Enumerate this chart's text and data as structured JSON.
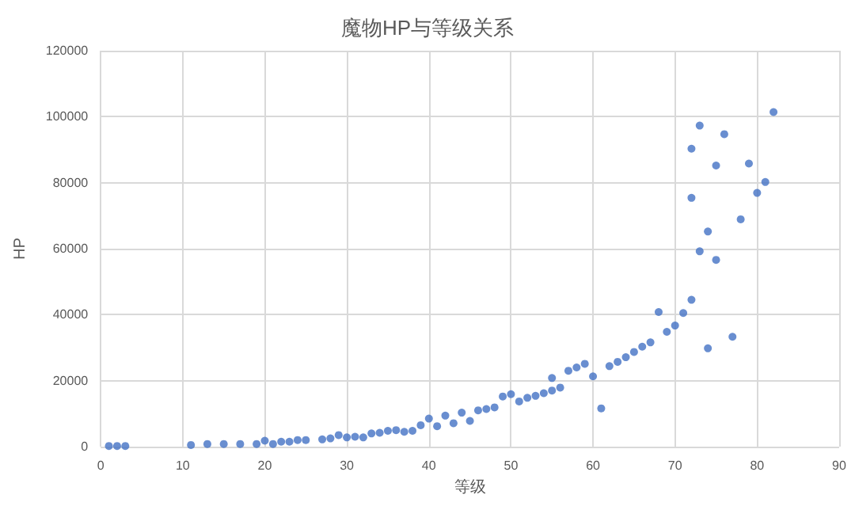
{
  "chart_data": {
    "type": "scatter",
    "title": "魔物HP与等级关系",
    "xlabel": "等级",
    "ylabel": "HP",
    "x": [
      1,
      2,
      3,
      11,
      13,
      15,
      17,
      19,
      20,
      21,
      22,
      23,
      24,
      25,
      27,
      28,
      29,
      30,
      31,
      32,
      33,
      34,
      35,
      36,
      37,
      38,
      39,
      40,
      41,
      42,
      43,
      44,
      45,
      46,
      47,
      48,
      49,
      50,
      51,
      52,
      53,
      54,
      55,
      55,
      56,
      57,
      58,
      59,
      60,
      61,
      62,
      63,
      64,
      65,
      66,
      67,
      68,
      69,
      70,
      71,
      72,
      72,
      72,
      73,
      73,
      74,
      74,
      75,
      75,
      76,
      77,
      78,
      79,
      80,
      81,
      82
    ],
    "values": [
      200,
      200,
      200,
      500,
      800,
      800,
      800,
      800,
      1800,
      800,
      1500,
      1500,
      2000,
      2000,
      2200,
      2500,
      3500,
      2800,
      3000,
      2800,
      4000,
      4200,
      4800,
      5000,
      4500,
      4800,
      6500,
      8500,
      6200,
      9400,
      7100,
      10300,
      7800,
      11000,
      11400,
      11900,
      15200,
      15900,
      13700,
      14800,
      15400,
      16200,
      17000,
      20800,
      17900,
      23000,
      24000,
      25100,
      21300,
      11600,
      24400,
      25700,
      27100,
      28700,
      30300,
      31600,
      40800,
      34800,
      36700,
      40500,
      44500,
      75400,
      90300,
      97300,
      59200,
      65200,
      29800,
      85200,
      56600,
      94700,
      33300,
      68900,
      85800,
      76900,
      80200,
      101400
    ],
    "color": "#4472c4",
    "marker": "circle",
    "xlim": [
      0,
      90
    ],
    "xticks": [
      0,
      10,
      20,
      30,
      40,
      50,
      60,
      70,
      80,
      90
    ],
    "ylim": [
      0,
      120000
    ],
    "yticks": [
      0,
      20000,
      40000,
      60000,
      80000,
      100000,
      120000
    ],
    "grid": true
  }
}
